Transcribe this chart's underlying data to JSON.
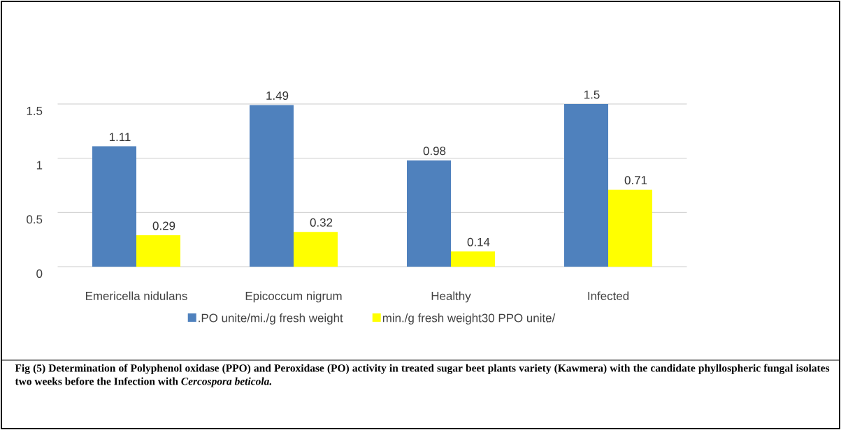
{
  "chart_data": {
    "type": "bar",
    "categories": [
      "Emericella   nidulans",
      "Epicoccum nigrum",
      "Healthy",
      "Infected"
    ],
    "series": [
      {
        "name": ".PO unite/mi./g fresh weight",
        "color": "#4f81bd",
        "values": [
          1.11,
          1.49,
          0.98,
          1.5
        ]
      },
      {
        "name": "min./g fresh weight30 PPO  unite/",
        "color": "#ffff00",
        "values": [
          0.29,
          0.32,
          0.14,
          0.71
        ]
      }
    ],
    "ylim": [
      0,
      1.5
    ],
    "yticks": [
      0,
      0.5,
      1,
      1.5
    ],
    "grid": "y",
    "legend": "bottom",
    "data_labels": true,
    "annotations": [
      "Fig (5) Determination of Polyphenol oxidase (PPO) and Peroxidase (PO) activity in treated sugar beet plants variety (Kawmera) with the candidate phyllospheric  fungal isolates two weeks before the Infection with *Cercospora beticola.*"
    ]
  }
}
